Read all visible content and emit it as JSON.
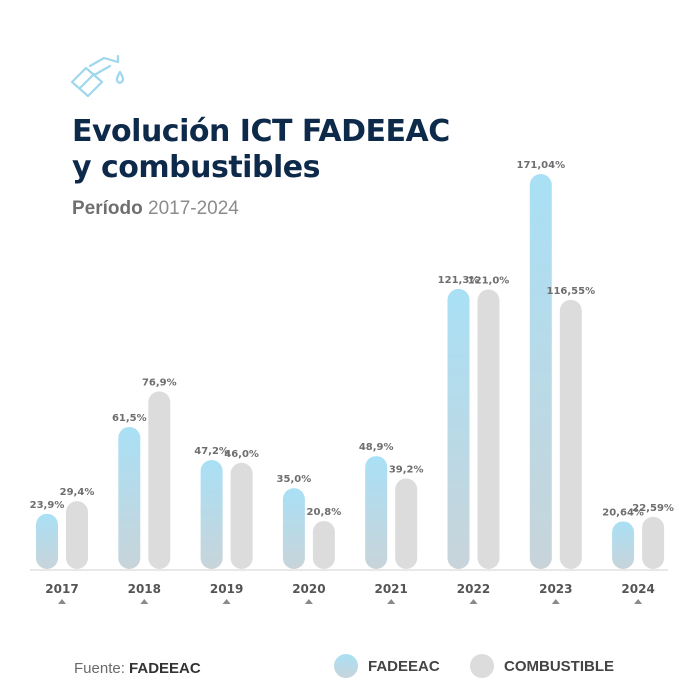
{
  "header": {
    "icon": "fuel-nozzle-icon",
    "title_line1": "Evolución ICT FADEEAC",
    "title_line2": "y combustibles",
    "period_label": "Período",
    "period_range": "2017-2024"
  },
  "colors": {
    "fadeeac_top": "#a9e0f5",
    "fadeeac_bottom": "#c8d4da",
    "combustible": "#dcdcdc",
    "title": "#0e2a4b",
    "axis": "#d0d0d0"
  },
  "chart_data": {
    "type": "bar",
    "title": "Evolución ICT FADEEAC y combustibles",
    "subtitle": "Período 2017-2024",
    "xlabel": "",
    "ylabel": "",
    "categories": [
      "2017",
      "2018",
      "2019",
      "2020",
      "2021",
      "2022",
      "2023",
      "2024"
    ],
    "series": [
      {
        "name": "FADEEAC",
        "values": [
          23.9,
          61.5,
          47.2,
          35.0,
          48.9,
          121.3,
          171.04,
          20.64
        ],
        "labels": [
          "23,9%",
          "61,5%",
          "47,2%",
          "35,0%",
          "48,9%",
          "121,3%",
          "171,04%",
          "20,64%"
        ]
      },
      {
        "name": "COMBUSTIBLE",
        "values": [
          29.4,
          76.9,
          46.0,
          20.8,
          39.2,
          121.0,
          116.55,
          22.59
        ],
        "labels": [
          "29,4%",
          "76,9%",
          "46,0%",
          "20,8%",
          "39,2%",
          "121,0%",
          "116,55%",
          "22,59%"
        ]
      }
    ],
    "ylim": [
      0,
      180
    ],
    "grid": false,
    "legend": "bottom"
  },
  "footer": {
    "source_label": "Fuente:",
    "source_value": "FADEEAC"
  },
  "legend": {
    "fadeeac": "FADEEAC",
    "combustible": "COMBUSTIBLE"
  }
}
